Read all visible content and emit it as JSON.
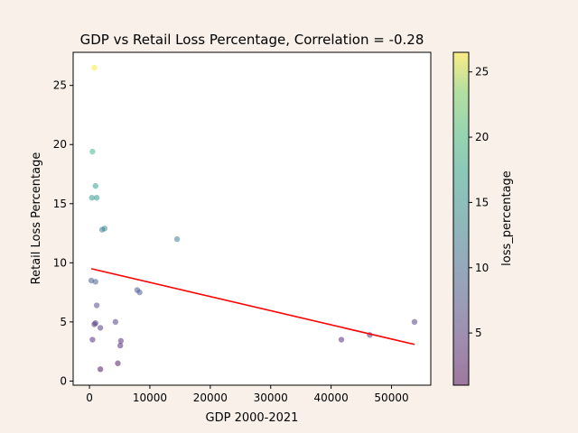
{
  "chart_data": {
    "type": "scatter",
    "title": "GDP vs Retail Loss Percentage, Correlation = -0.28",
    "xlabel": "GDP 2000-2021",
    "ylabel": "Retail Loss Percentage",
    "xlim": [
      -2700,
      56500
    ],
    "ylim": [
      -0.35,
      27.8
    ],
    "xticks": [
      0,
      10000,
      20000,
      30000,
      40000,
      50000
    ],
    "yticks": [
      0,
      5,
      10,
      15,
      20,
      25
    ],
    "grid": false,
    "points": [
      {
        "x": 800,
        "y": 26.5
      },
      {
        "x": 500,
        "y": 19.4
      },
      {
        "x": 1000,
        "y": 16.5
      },
      {
        "x": 400,
        "y": 15.5
      },
      {
        "x": 1200,
        "y": 15.5
      },
      {
        "x": 2500,
        "y": 12.9
      },
      {
        "x": 2100,
        "y": 12.8
      },
      {
        "x": 14500,
        "y": 12.0
      },
      {
        "x": 300,
        "y": 8.5
      },
      {
        "x": 1000,
        "y": 8.4
      },
      {
        "x": 7900,
        "y": 7.7
      },
      {
        "x": 8300,
        "y": 7.5
      },
      {
        "x": 1200,
        "y": 6.4
      },
      {
        "x": 1000,
        "y": 4.9
      },
      {
        "x": 800,
        "y": 4.8
      },
      {
        "x": 1800,
        "y": 4.5
      },
      {
        "x": 4300,
        "y": 5.0
      },
      {
        "x": 500,
        "y": 3.5
      },
      {
        "x": 5200,
        "y": 3.4
      },
      {
        "x": 5100,
        "y": 3.0
      },
      {
        "x": 4700,
        "y": 1.5
      },
      {
        "x": 1800,
        "y": 1.0
      },
      {
        "x": 41700,
        "y": 3.5
      },
      {
        "x": 46400,
        "y": 3.9
      },
      {
        "x": 53800,
        "y": 5.0
      }
    ],
    "color_by": "y",
    "colormap": "viridis",
    "marker_alpha": 0.5,
    "trendline": {
      "x": [
        300,
        53800
      ],
      "y": [
        9.5,
        3.1
      ],
      "color": "#ff0000"
    },
    "colorbar": {
      "label": "loss_percentage",
      "range": [
        1.0,
        26.5
      ],
      "ticks": [
        5,
        10,
        15,
        20,
        25
      ]
    }
  }
}
